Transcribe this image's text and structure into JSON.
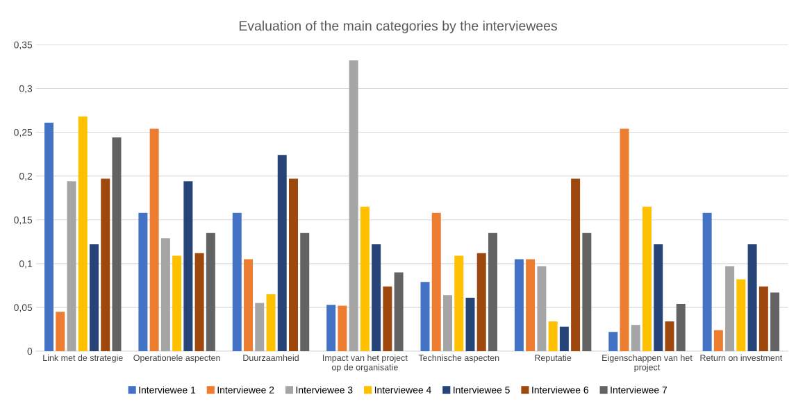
{
  "chart_data": {
    "type": "bar",
    "title": "Evaluation of the main categories by the interviewees",
    "categories": [
      "Link met de strategie",
      "Operationele aspecten",
      "Duurzaamheid",
      "Impact van het project\nop de organisatie",
      "Technische aspecten",
      "Reputatie",
      "Eigenschappen van het\nproject",
      "Return on investment"
    ],
    "series": [
      {
        "name": "Interviewee 1",
        "color": "#4472c4",
        "values": [
          0.261,
          0.158,
          0.158,
          0.053,
          0.079,
          0.105,
          0.022,
          0.158
        ]
      },
      {
        "name": "Interviewee 2",
        "color": "#ed7d31",
        "values": [
          0.045,
          0.254,
          0.105,
          0.052,
          0.158,
          0.105,
          0.254,
          0.024
        ]
      },
      {
        "name": "Interviewee 3",
        "color": "#a5a5a5",
        "values": [
          0.194,
          0.129,
          0.055,
          0.332,
          0.064,
          0.097,
          0.03,
          0.097
        ]
      },
      {
        "name": "Interviewee 4",
        "color": "#ffc000",
        "values": [
          0.268,
          0.109,
          0.065,
          0.165,
          0.109,
          0.034,
          0.165,
          0.082
        ]
      },
      {
        "name": "Interviewee 5",
        "color": "#264478",
        "values": [
          0.122,
          0.194,
          0.224,
          0.122,
          0.061,
          0.028,
          0.122,
          0.122
        ]
      },
      {
        "name": "Interviewee 6",
        "color": "#9e480e",
        "values": [
          0.197,
          0.112,
          0.197,
          0.074,
          0.112,
          0.197,
          0.034,
          0.074
        ]
      },
      {
        "name": "Interviewee 7",
        "color": "#636363",
        "values": [
          0.244,
          0.135,
          0.135,
          0.09,
          0.135,
          0.135,
          0.054,
          0.067
        ]
      }
    ],
    "ylim": [
      0,
      0.35
    ],
    "yticks": [
      0,
      {
        "value": 0.05,
        "label": "0,05"
      },
      {
        "value": 0.1,
        "label": "0,1"
      },
      {
        "value": 0.15,
        "label": "0,15"
      },
      {
        "value": 0.2,
        "label": "0,2"
      },
      {
        "value": 0.25,
        "label": "0,25"
      },
      {
        "value": 0.3,
        "label": "0,3"
      },
      {
        "value": 0.35,
        "label": "0,35"
      }
    ],
    "grid": "y",
    "legend": "bottom"
  }
}
